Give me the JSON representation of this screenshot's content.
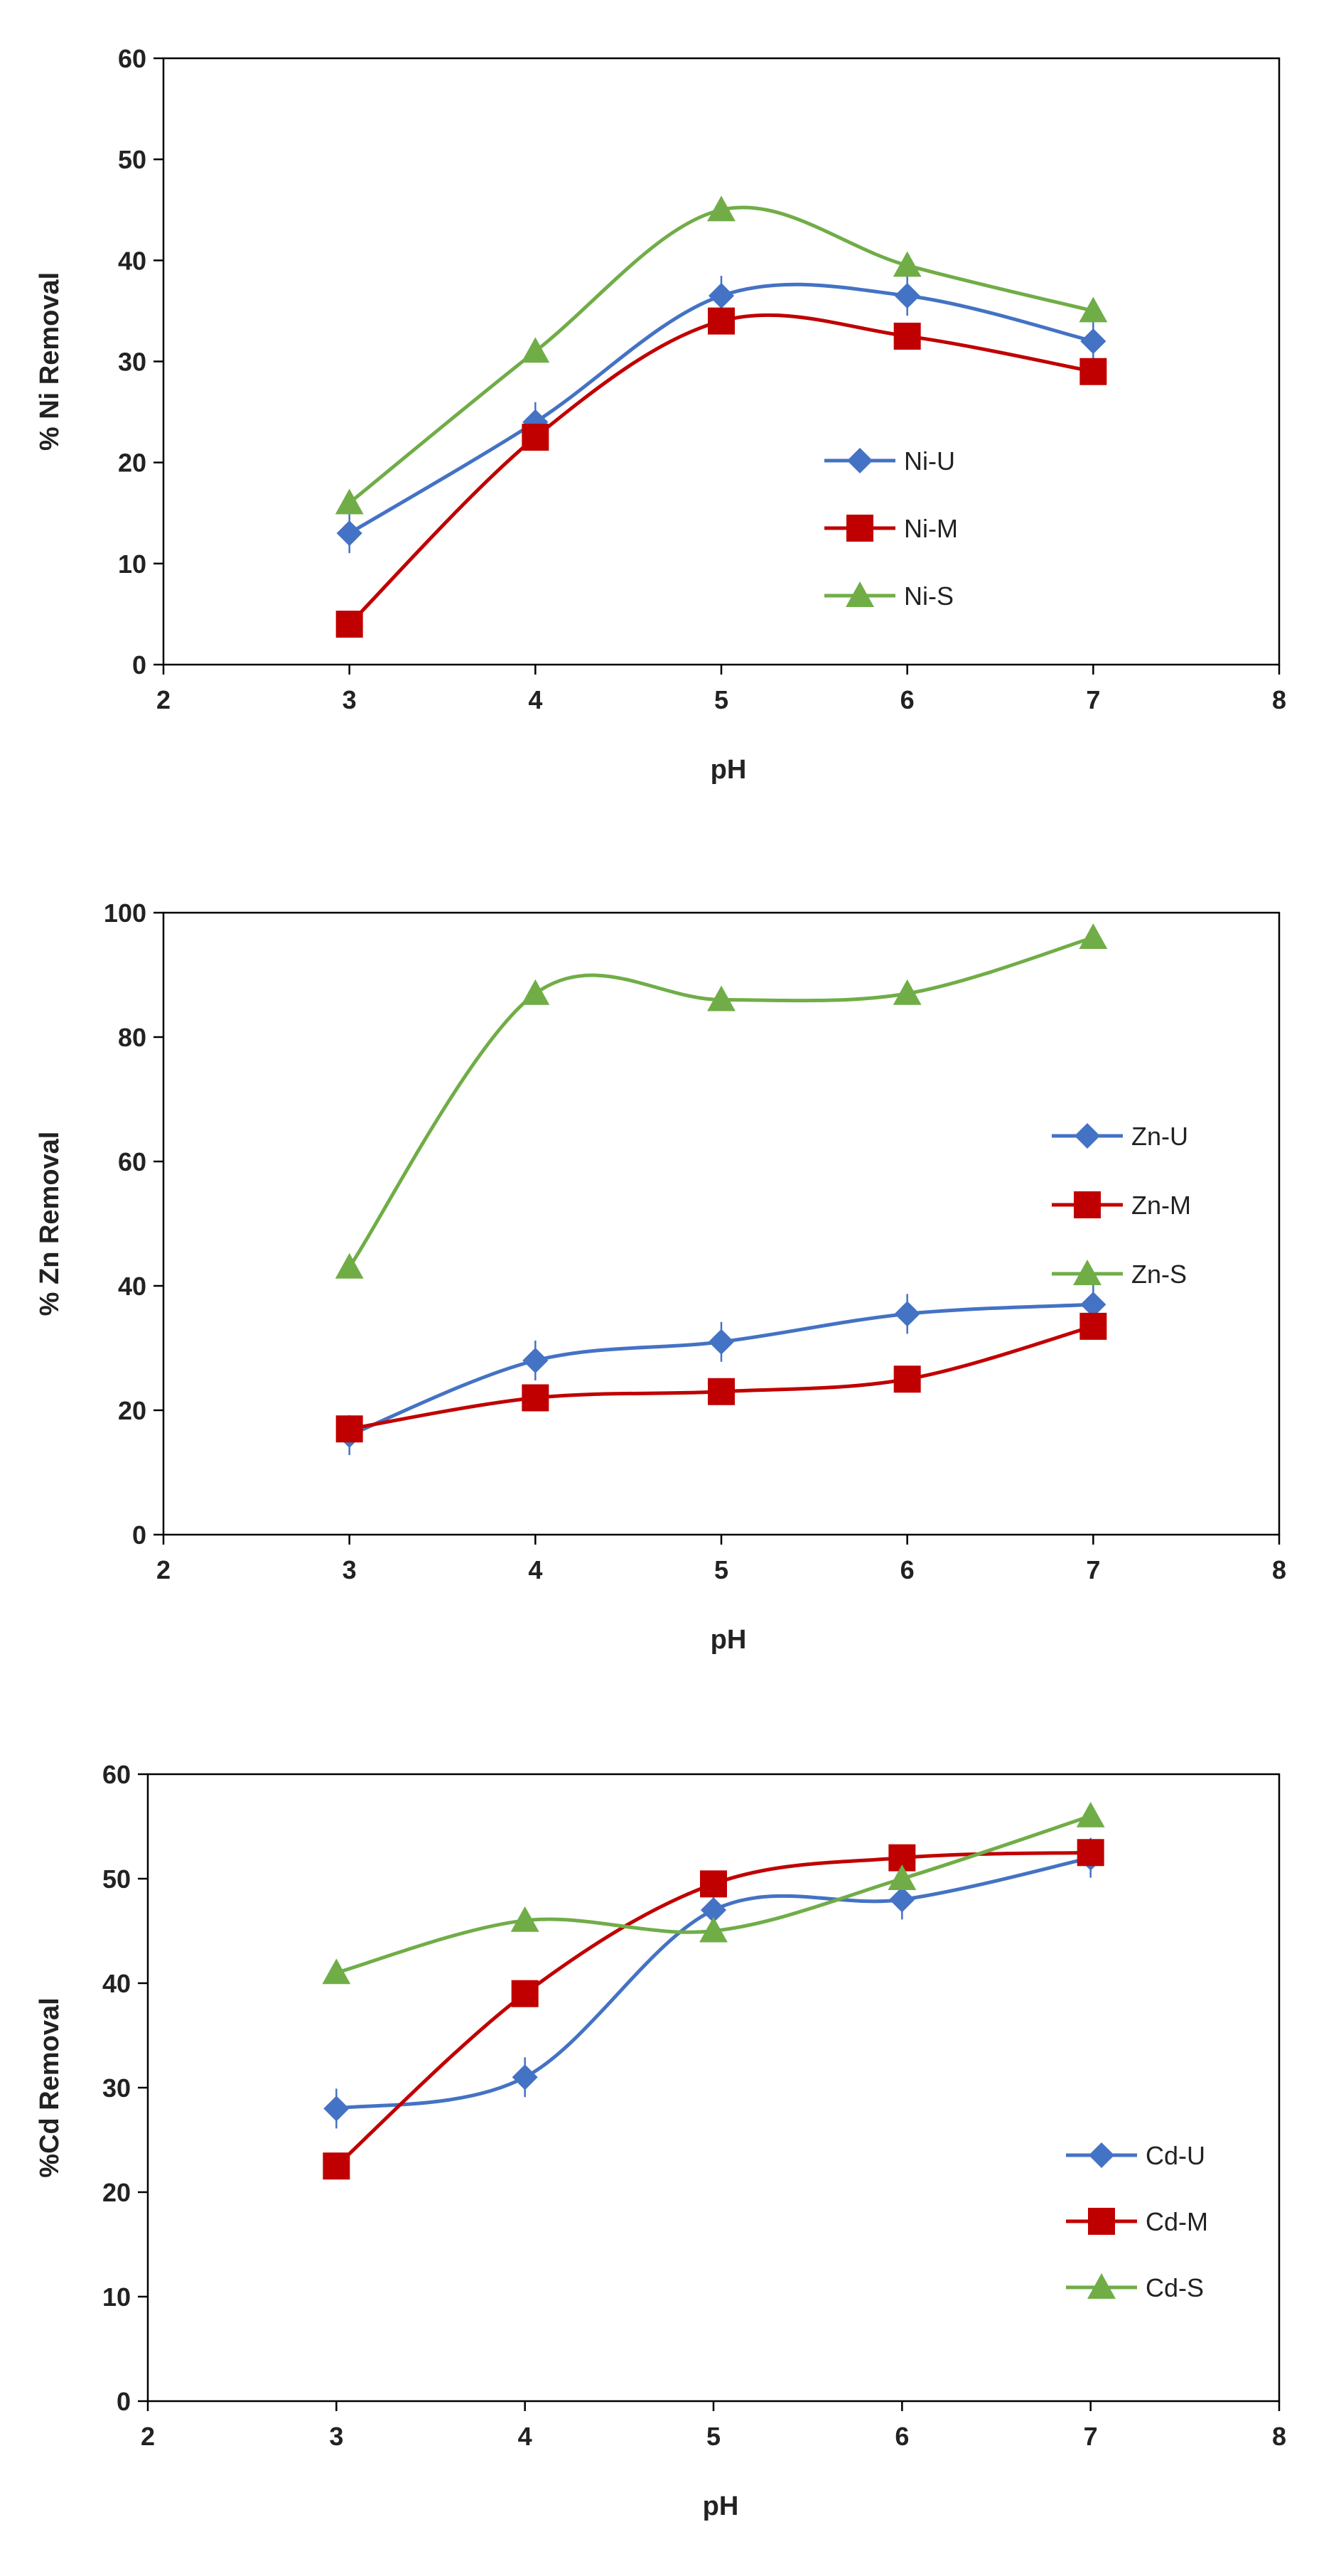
{
  "colors": {
    "U": "#4472C4",
    "M": "#C00000",
    "S": "#70AD47"
  },
  "chart_data": [
    {
      "type": "line",
      "xlabel": "pH",
      "ylabel": "% Ni Removal",
      "xlim": [
        2,
        8
      ],
      "ylim": [
        0,
        60
      ],
      "xticks": [
        "2",
        "3",
        "4",
        "5",
        "6",
        "7",
        "8"
      ],
      "yticks": [
        "0",
        "10",
        "20",
        "30",
        "40",
        "50",
        "60"
      ],
      "legend_position": "center-right",
      "series": [
        {
          "name": "Ni-U",
          "key": "U",
          "marker": "diamond",
          "x": [
            3,
            4,
            5,
            6,
            7
          ],
          "y": [
            13,
            24,
            36.5,
            36.5,
            32
          ]
        },
        {
          "name": "Ni-M",
          "key": "M",
          "marker": "square",
          "x": [
            3,
            4,
            5,
            6,
            7
          ],
          "y": [
            4,
            22.5,
            34,
            32.5,
            29
          ]
        },
        {
          "name": "Ni-S",
          "key": "S",
          "marker": "triangle",
          "x": [
            3,
            4,
            5,
            6,
            7
          ],
          "y": [
            16,
            31,
            45,
            39.5,
            35
          ]
        }
      ]
    },
    {
      "type": "line",
      "xlabel": "pH",
      "ylabel": "% Zn Removal",
      "xlim": [
        2,
        8
      ],
      "ylim": [
        0,
        100
      ],
      "xticks": [
        "2",
        "3",
        "4",
        "5",
        "6",
        "7",
        "8"
      ],
      "yticks": [
        "0",
        "20",
        "40",
        "60",
        "80",
        "100"
      ],
      "legend_position": "center-right",
      "series": [
        {
          "name": "Zn-U",
          "key": "U",
          "marker": "diamond",
          "x": [
            3,
            4,
            5,
            6,
            7
          ],
          "y": [
            16,
            28,
            31,
            35.5,
            37
          ]
        },
        {
          "name": "Zn-M",
          "key": "M",
          "marker": "square",
          "x": [
            3,
            4,
            5,
            6,
            7
          ],
          "y": [
            17,
            22,
            23,
            25,
            33.5
          ]
        },
        {
          "name": "Zn-S",
          "key": "S",
          "marker": "triangle",
          "x": [
            3,
            4,
            5,
            6,
            7
          ],
          "y": [
            43,
            87,
            86,
            87,
            96
          ]
        }
      ]
    },
    {
      "type": "line",
      "xlabel": "pH",
      "ylabel": "%Cd Removal",
      "xlim": [
        2,
        8
      ],
      "ylim": [
        0,
        60
      ],
      "xticks": [
        "2",
        "3",
        "4",
        "5",
        "6",
        "7",
        "8"
      ],
      "yticks": [
        "0",
        "10",
        "20",
        "30",
        "40",
        "50",
        "60"
      ],
      "legend_position": "bottom-right",
      "series": [
        {
          "name": "Cd-U",
          "key": "U",
          "marker": "diamond",
          "x": [
            3,
            4,
            5,
            6,
            7
          ],
          "y": [
            28,
            31,
            47,
            48,
            52
          ]
        },
        {
          "name": "Cd-M",
          "key": "M",
          "marker": "square",
          "x": [
            3,
            4,
            5,
            6,
            7
          ],
          "y": [
            22.5,
            39,
            49.5,
            52,
            52.5
          ]
        },
        {
          "name": "Cd-S",
          "key": "S",
          "marker": "triangle",
          "x": [
            3,
            4,
            5,
            6,
            7
          ],
          "y": [
            41,
            46,
            45,
            50,
            56
          ]
        }
      ]
    }
  ]
}
